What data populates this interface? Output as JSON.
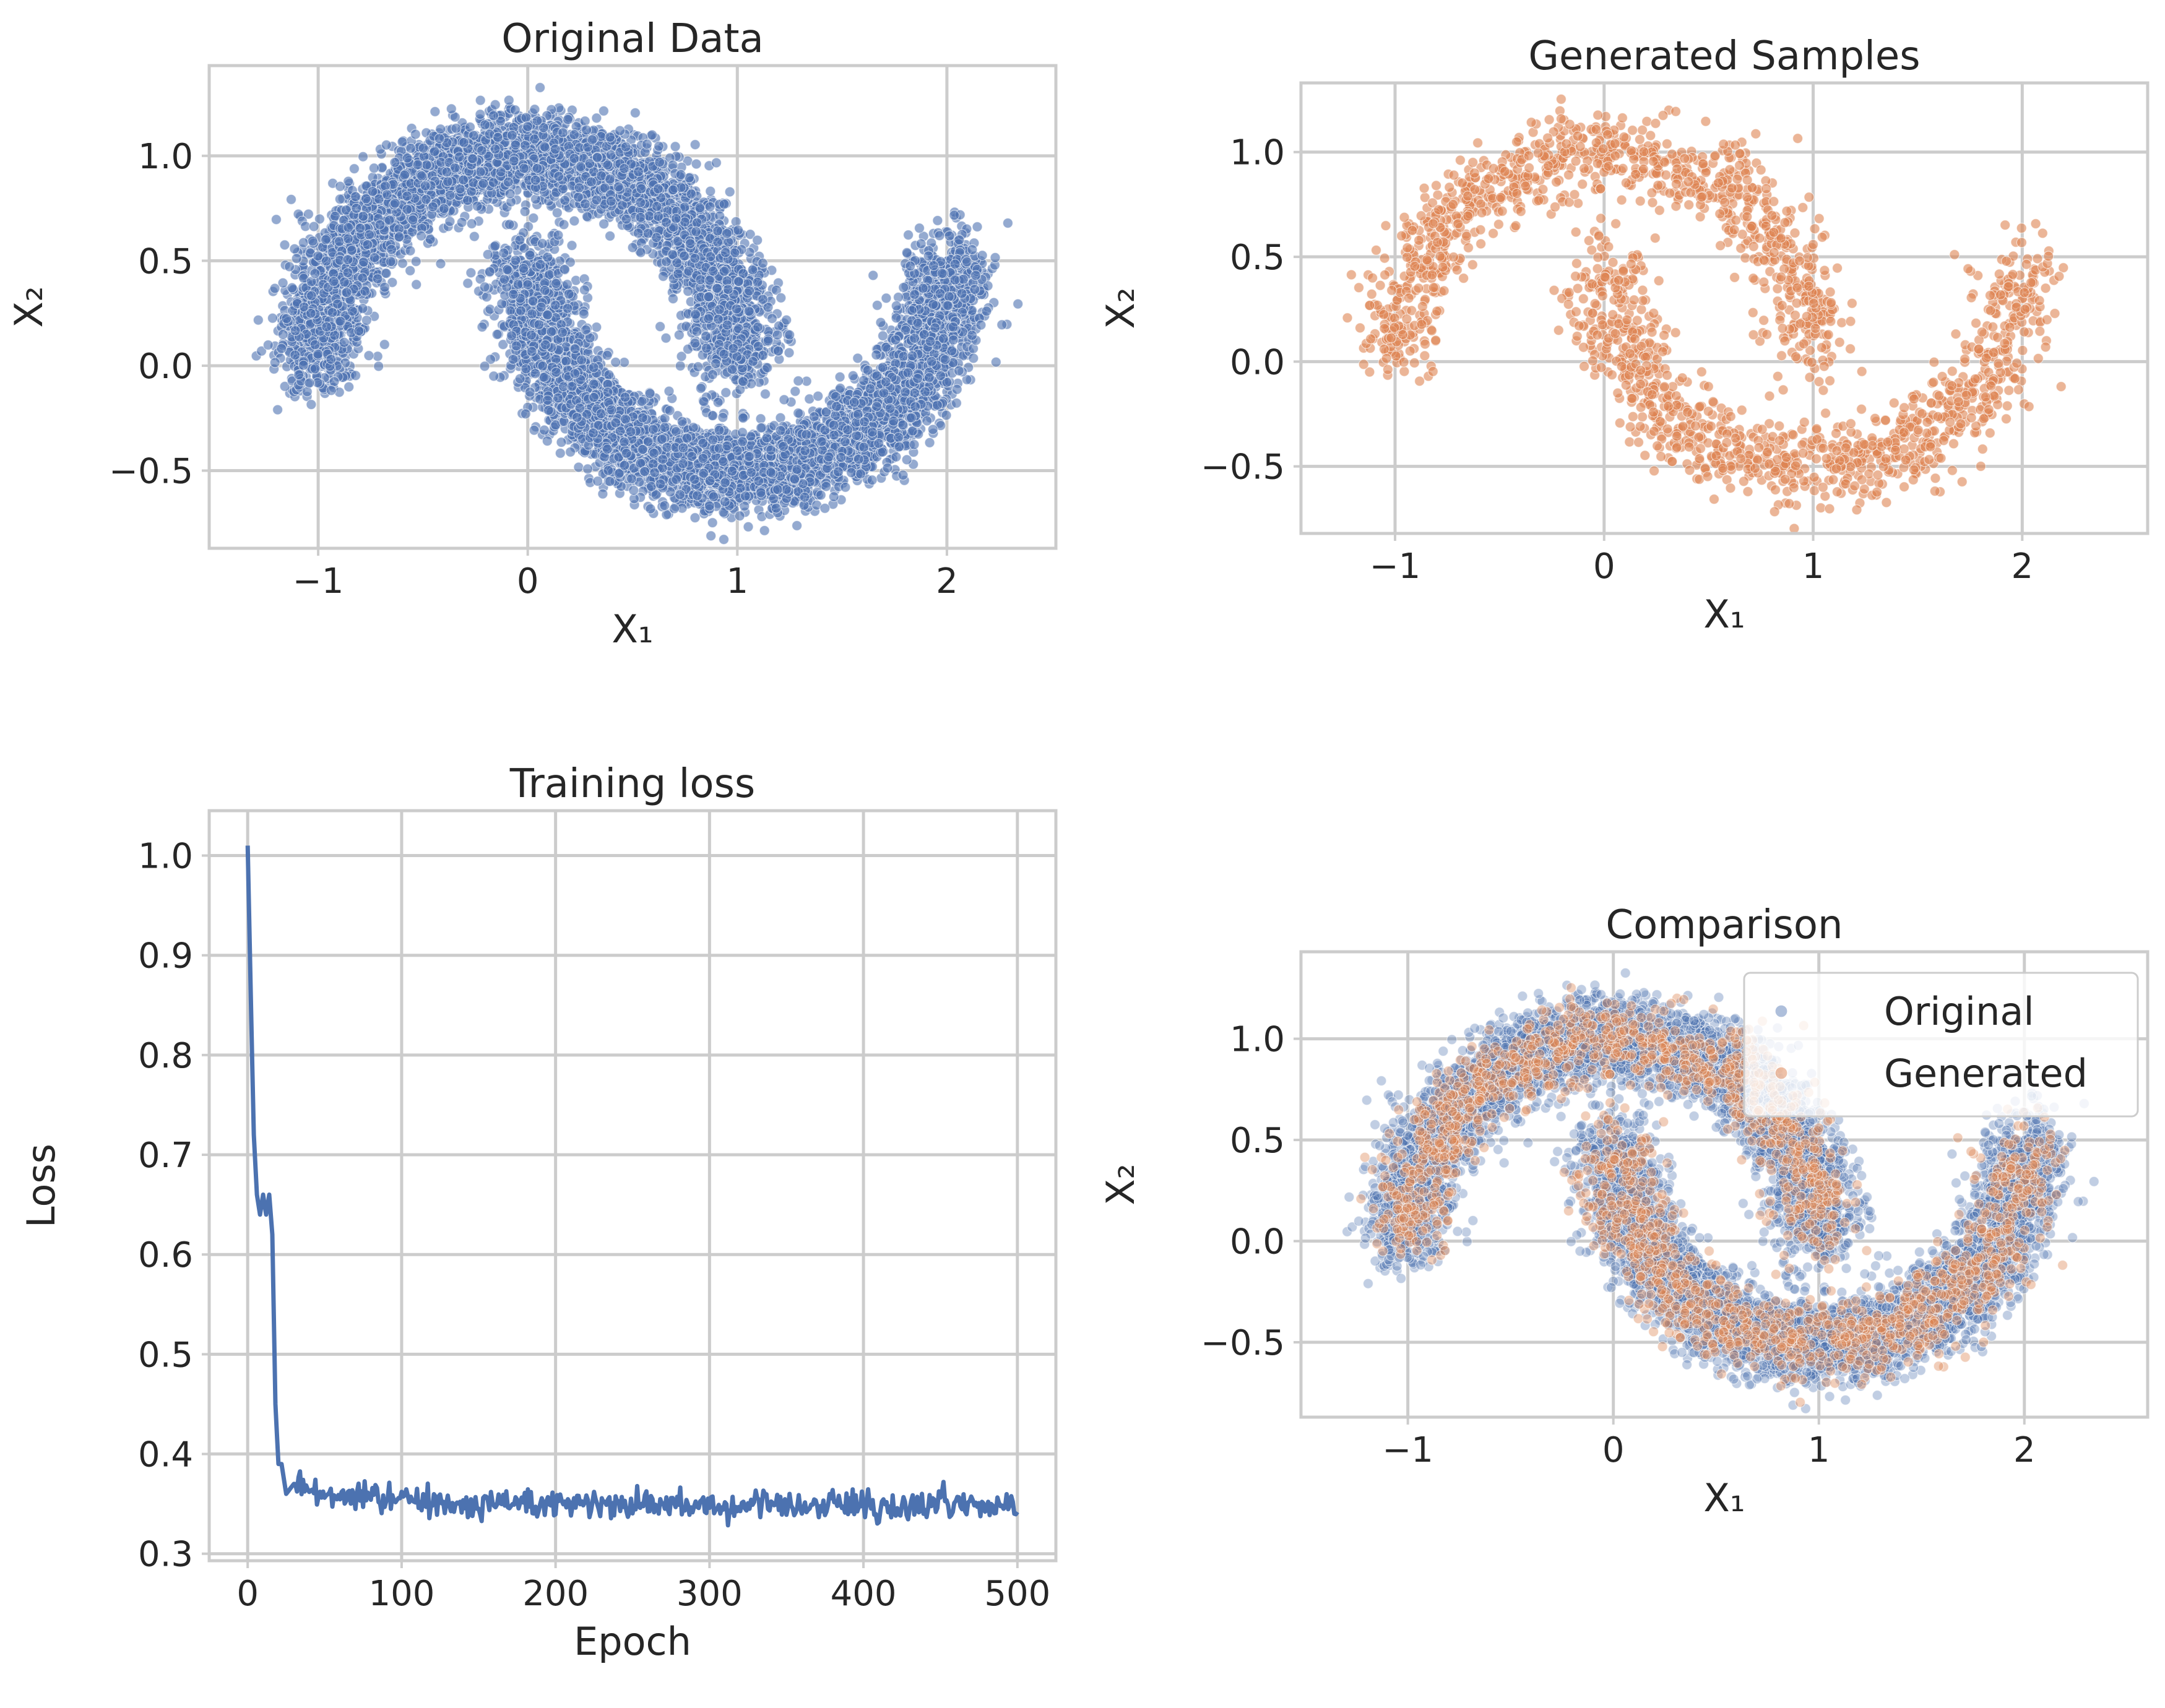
{
  "figure": {
    "colors": {
      "original": "#4c72b0",
      "generated": "#dd8452"
    }
  },
  "chart_data": [
    {
      "type": "scatter",
      "title": "Original Data",
      "xlabel": "X₁",
      "ylabel": "X₂",
      "xlim": [
        -1.52,
        2.52
      ],
      "ylim": [
        -0.87,
        1.43
      ],
      "xticks": [
        -1,
        0,
        1,
        2
      ],
      "yticks": [
        -0.5,
        0.0,
        0.5,
        1.0
      ],
      "xtick_labels": [
        "−1",
        "0",
        "1",
        "2"
      ],
      "ytick_labels": [
        "−0.5",
        "0.0",
        "0.5",
        "1.0"
      ],
      "series": [
        {
          "color": "#4c72b0",
          "alpha": 0.6,
          "n_points": 10000,
          "shape": "two interleaved moons, noise 0.1"
        }
      ]
    },
    {
      "type": "scatter",
      "title": "Generated Samples",
      "xlabel": "X₁",
      "ylabel": "X₂",
      "xlim": [
        -1.45,
        2.6
      ],
      "ylim": [
        -0.82,
        1.33
      ],
      "xticks": [
        -1,
        0,
        1,
        2
      ],
      "yticks": [
        -0.5,
        0.0,
        0.5,
        1.0
      ],
      "xtick_labels": [
        "−1",
        "0",
        "1",
        "2"
      ],
      "ytick_labels": [
        "−0.5",
        "0.0",
        "0.5",
        "1.0"
      ],
      "series": [
        {
          "color": "#dd8452",
          "alpha": 0.6,
          "n_points": 2000,
          "shape": "two interleaved moons, noise 0.1"
        }
      ]
    },
    {
      "type": "line",
      "title": "Training loss",
      "xlabel": "Epoch",
      "ylabel": "Loss",
      "xlim": [
        -25,
        525
      ],
      "ylim": [
        0.293,
        1.045
      ],
      "xticks": [
        0,
        100,
        200,
        300,
        400,
        500
      ],
      "yticks": [
        0.3,
        0.4,
        0.5,
        0.6,
        0.7,
        0.8,
        0.9,
        1.0
      ],
      "xtick_labels": [
        "0",
        "100",
        "200",
        "300",
        "400",
        "500"
      ],
      "ytick_labels": [
        "0.3",
        "0.4",
        "0.5",
        "0.6",
        "0.7",
        "0.8",
        "0.9",
        "1.0"
      ],
      "series": [
        {
          "color": "#4c72b0",
          "key_points": [
            [
              0,
              1.01
            ],
            [
              2,
              0.86
            ],
            [
              4,
              0.72
            ],
            [
              6,
              0.66
            ],
            [
              8,
              0.64
            ],
            [
              10,
              0.66
            ],
            [
              12,
              0.64
            ],
            [
              14,
              0.66
            ],
            [
              16,
              0.62
            ],
            [
              18,
              0.45
            ],
            [
              20,
              0.39
            ],
            [
              22,
              0.39
            ],
            [
              25,
              0.36
            ],
            [
              30,
              0.37
            ],
            [
              500,
              0.345
            ]
          ],
          "plateau": 0.348
        }
      ]
    },
    {
      "type": "scatter",
      "title": "Comparison",
      "xlabel": "X₁",
      "ylabel": "X₂",
      "xlim": [
        -1.52,
        2.6
      ],
      "ylim": [
        -0.87,
        1.43
      ],
      "xticks": [
        -1,
        0,
        1,
        2
      ],
      "yticks": [
        -0.5,
        0.0,
        0.5,
        1.0
      ],
      "xtick_labels": [
        "−1",
        "0",
        "1",
        "2"
      ],
      "ytick_labels": [
        "−0.5",
        "0.0",
        "0.5",
        "1.0"
      ],
      "legend": {
        "position": "top-right",
        "entries": [
          "Original",
          "Generated"
        ]
      },
      "series": [
        {
          "name": "Original",
          "color": "#4c72b0",
          "alpha": 0.35,
          "n_points": 10000
        },
        {
          "name": "Generated",
          "color": "#dd8452",
          "alpha": 0.4,
          "n_points": 2000
        }
      ]
    }
  ]
}
